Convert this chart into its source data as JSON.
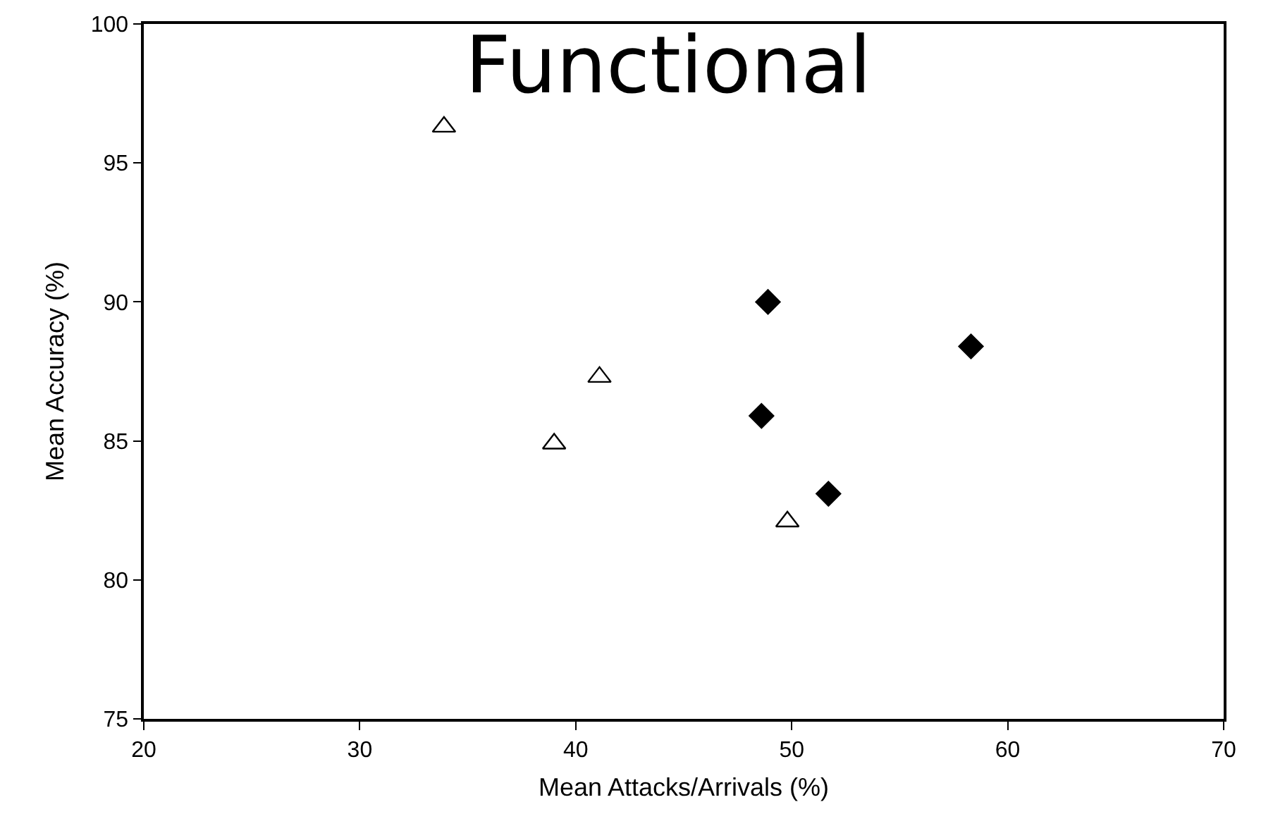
{
  "chart_data": {
    "type": "scatter",
    "title": "Functional",
    "xlabel": "Mean Attacks/Arrivals (%)",
    "ylabel": "Mean Accuracy (%)",
    "xlim": [
      20,
      70
    ],
    "xticks": [
      20,
      30,
      40,
      50,
      60,
      70
    ],
    "ylim": [
      75,
      100
    ],
    "yticks": [
      75,
      80,
      85,
      90,
      95,
      100
    ],
    "series": [
      {
        "marker": "triangle",
        "color": "#ffffff",
        "x": [
          33.9,
          41.1,
          39.0,
          49.8
        ],
        "values": [
          96.3,
          87.3,
          84.9,
          82.1
        ]
      },
      {
        "marker": "diamond",
        "color": "#000000",
        "x": [
          48.9,
          58.3,
          48.6,
          51.7
        ],
        "values": [
          90.0,
          88.4,
          85.9,
          83.1
        ]
      }
    ]
  }
}
